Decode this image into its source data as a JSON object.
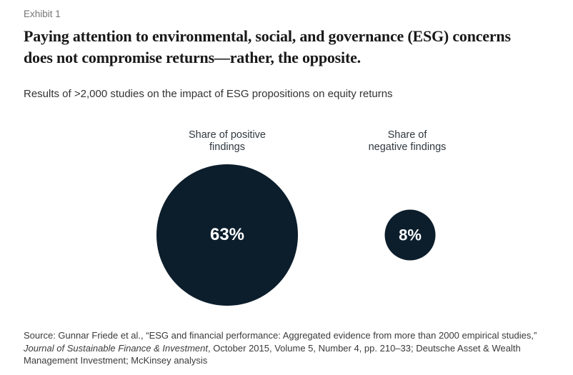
{
  "exhibit": {
    "label": "Exhibit 1"
  },
  "header": {
    "title": "Paying attention to environmental, social, and governance (ESG) concerns\ndoes not compromise returns—rather, the opposite.",
    "subtitle": "Results of >2,000 studies on the impact of ESG propositions on equity returns"
  },
  "chart_data": {
    "type": "bubble",
    "title": "Results of >2,000 studies on the impact of ESG propositions on equity returns",
    "unit": "%",
    "series": [
      {
        "label": "Share of positive\nfindings",
        "value": 63,
        "display": "63%"
      },
      {
        "label": "Share of\nnegative findings",
        "value": 8,
        "display": "8%"
      }
    ],
    "bubble_color": "#0c1e2c",
    "value_text_color": "#ffffff",
    "layout": "two area-proportional circles side by side, centers horizontally aligned, category labels above each circle, value printed inside circle"
  },
  "footer": {
    "source_line1": "Source: Gunnar Friede et al., “ESG and financial performance: Aggregated evidence from more than 2000 empirical studies,”",
    "source_line2_italic": "Journal of Sustainable Finance & Investment",
    "source_line2_rest": ", October 2015, Volume 5, Number 4, pp. 210–33; Deutsche Asset & Wealth",
    "source_line3": "Management Investment; McKinsey analysis"
  },
  "colors": {
    "bubble": "#0c1e2c",
    "title_text": "#191919",
    "muted_text": "#757575",
    "body_text": "#333333",
    "background": "#ffffff"
  }
}
